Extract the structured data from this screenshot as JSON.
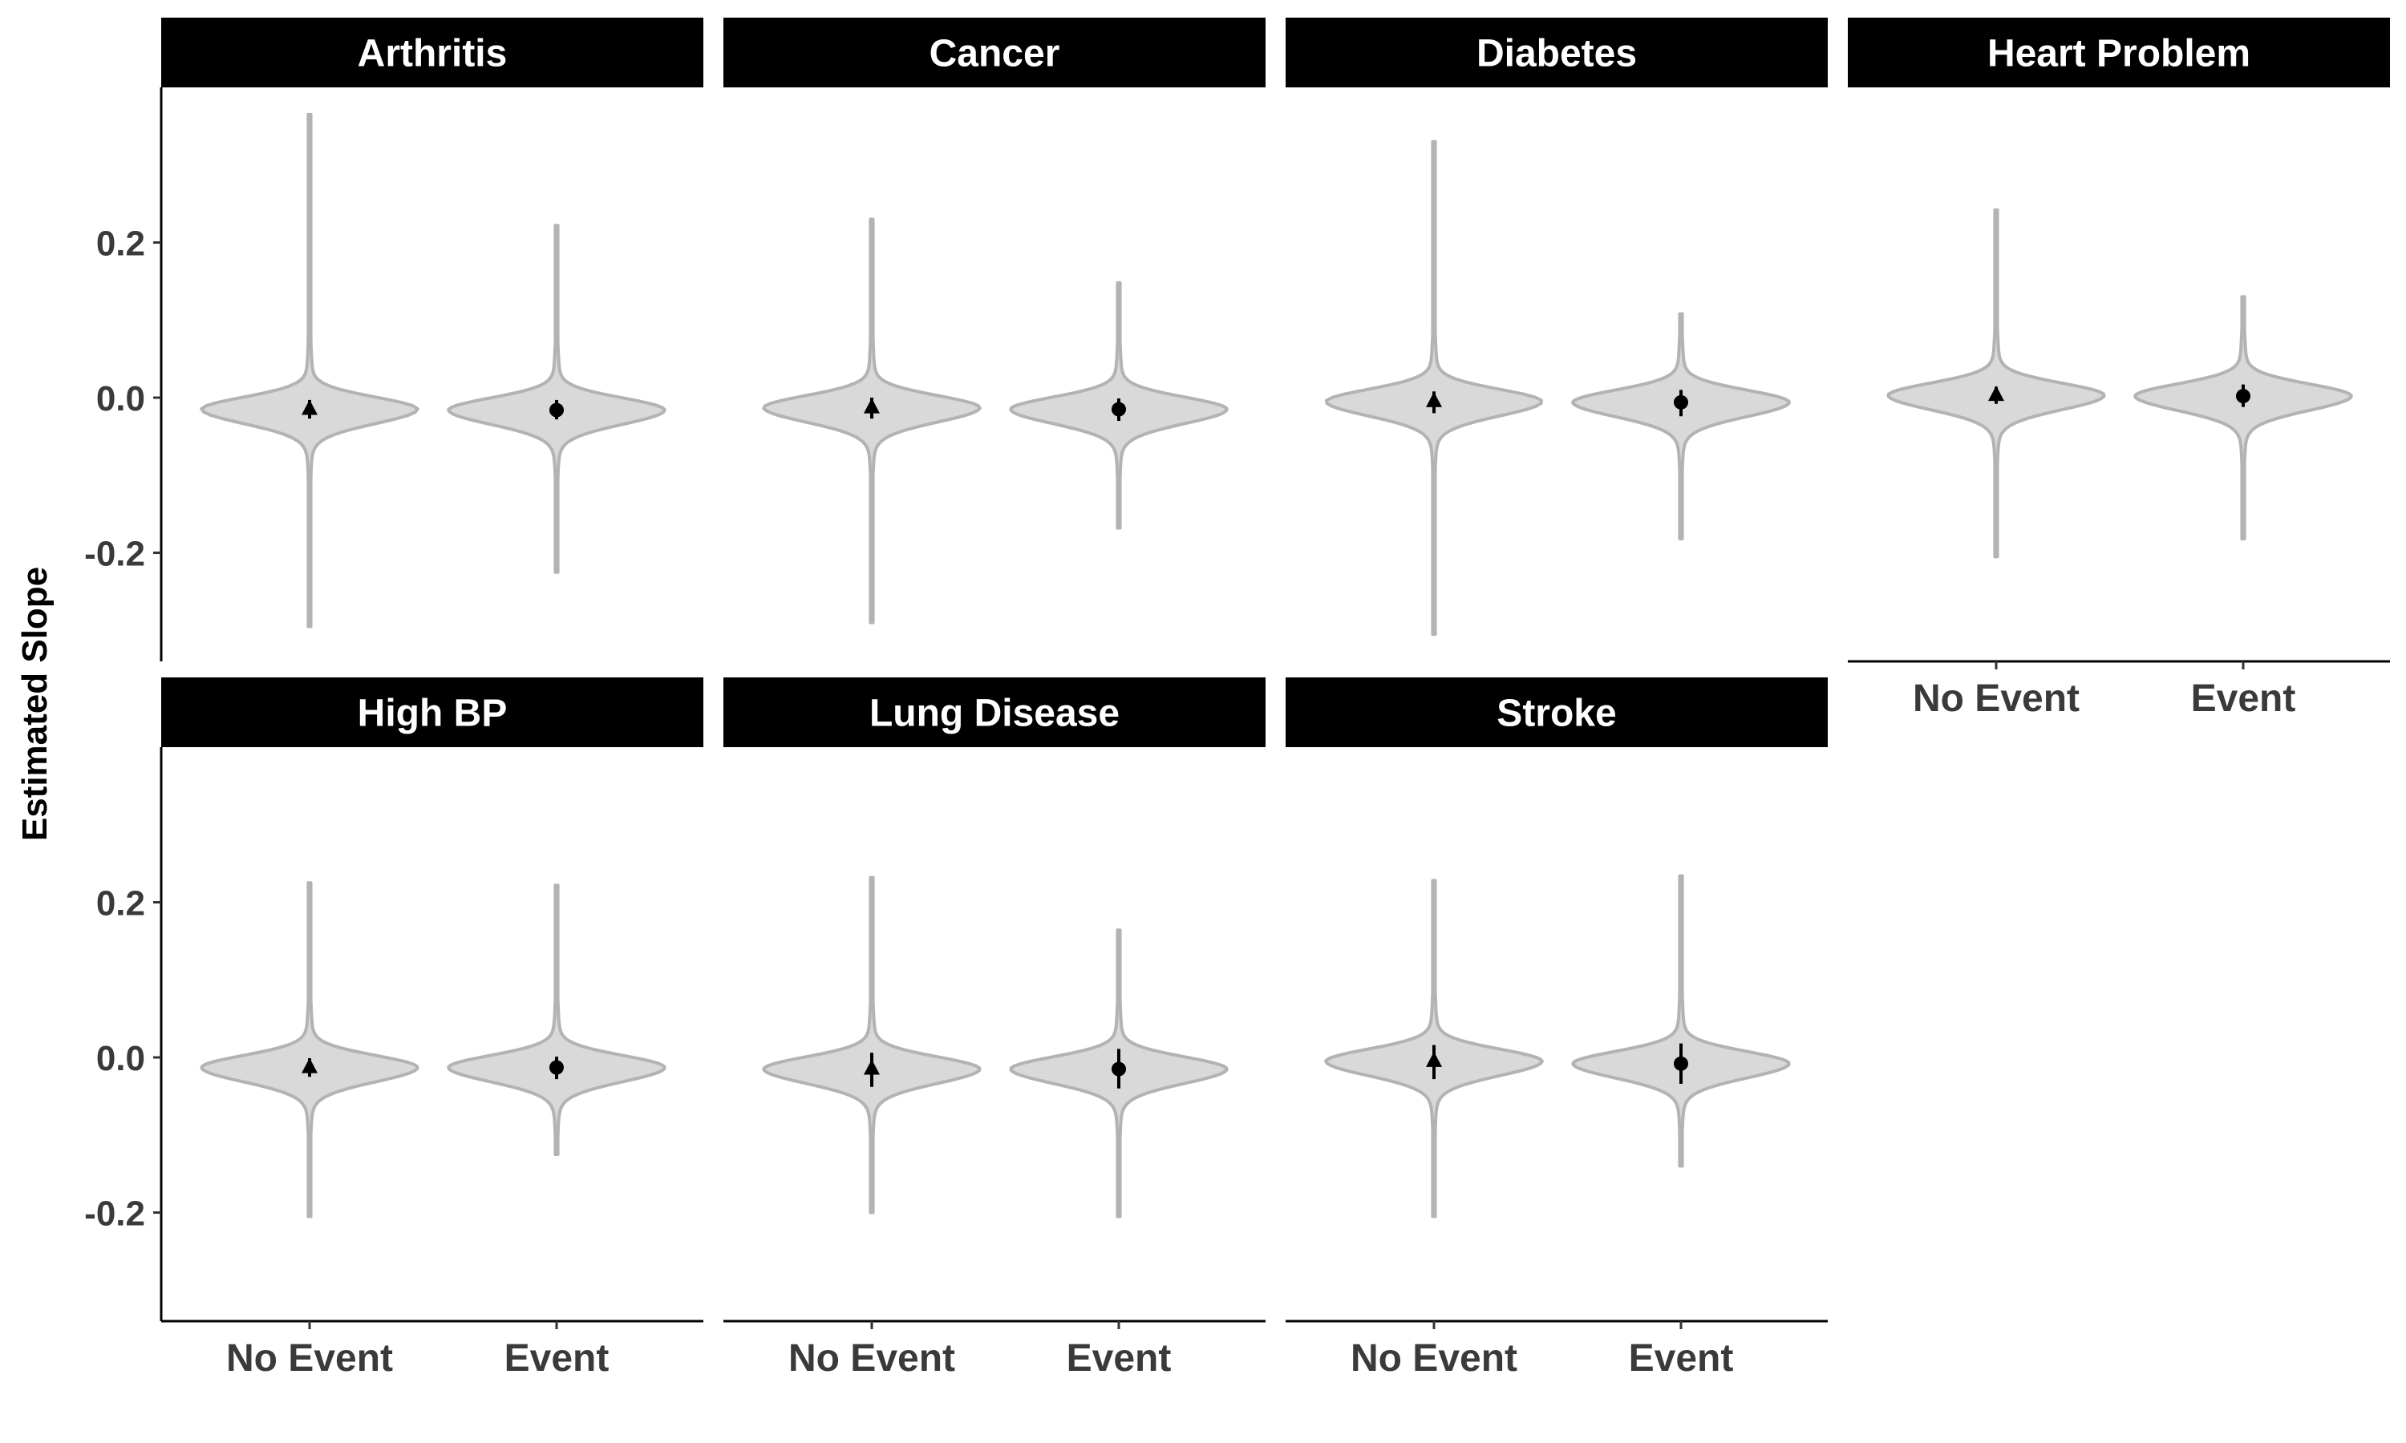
{
  "chart_data": {
    "type": "violin",
    "ylabel": "Estimated Slope",
    "xlabel": "",
    "categories": [
      "No Event",
      "Event"
    ],
    "yticks": [
      "0.2",
      "0.0",
      "-0.2"
    ],
    "ytick_values": [
      0.2,
      0.0,
      -0.2
    ],
    "ylim": [
      -0.34,
      0.4
    ],
    "grid": false,
    "colors": {
      "violin_fill": "#d9d9d9",
      "violin_line": "#b3b3b3",
      "strip_bg": "#000000",
      "strip_text": "#ffffff",
      "marker": "#000000"
    },
    "panels": [
      {
        "name": "Arthritis",
        "groups": [
          {
            "category": "No Event",
            "marker": "triangle",
            "mean": -0.015,
            "ci": [
              -0.027,
              -0.003
            ],
            "min": -0.295,
            "max": 0.365
          },
          {
            "category": "Event",
            "marker": "circle",
            "mean": -0.016,
            "ci": [
              -0.028,
              -0.003
            ],
            "min": -0.225,
            "max": 0.222
          }
        ]
      },
      {
        "name": "Cancer",
        "groups": [
          {
            "category": "No Event",
            "marker": "triangle",
            "mean": -0.013,
            "ci": [
              -0.027,
              0.0
            ],
            "min": -0.29,
            "max": 0.23
          },
          {
            "category": "Event",
            "marker": "circle",
            "mean": -0.015,
            "ci": [
              -0.03,
              -0.001
            ],
            "min": -0.168,
            "max": 0.148
          }
        ]
      },
      {
        "name": "Diabetes",
        "groups": [
          {
            "category": "No Event",
            "marker": "triangle",
            "mean": -0.005,
            "ci": [
              -0.02,
              0.008
            ],
            "min": -0.305,
            "max": 0.33
          },
          {
            "category": "Event",
            "marker": "circle",
            "mean": -0.006,
            "ci": [
              -0.024,
              0.01
            ],
            "min": -0.182,
            "max": 0.108
          }
        ]
      },
      {
        "name": "Heart Problem",
        "groups": [
          {
            "category": "No Event",
            "marker": "triangle",
            "mean": 0.003,
            "ci": [
              -0.008,
              0.014
            ],
            "min": -0.205,
            "max": 0.242
          },
          {
            "category": "Event",
            "marker": "circle",
            "mean": 0.002,
            "ci": [
              -0.012,
              0.017
            ],
            "min": -0.182,
            "max": 0.13
          }
        ]
      },
      {
        "name": "High BP",
        "groups": [
          {
            "category": "No Event",
            "marker": "triangle",
            "mean": -0.013,
            "ci": [
              -0.025,
              -0.001
            ],
            "min": -0.205,
            "max": 0.225
          },
          {
            "category": "Event",
            "marker": "circle",
            "mean": -0.013,
            "ci": [
              -0.028,
              0.001
            ],
            "min": -0.125,
            "max": 0.222
          }
        ]
      },
      {
        "name": "Lung Disease",
        "groups": [
          {
            "category": "No Event",
            "marker": "triangle",
            "mean": -0.015,
            "ci": [
              -0.038,
              0.006
            ],
            "min": -0.2,
            "max": 0.232
          },
          {
            "category": "Event",
            "marker": "circle",
            "mean": -0.015,
            "ci": [
              -0.04,
              0.011
            ],
            "min": -0.205,
            "max": 0.164
          }
        ]
      },
      {
        "name": "Stroke",
        "groups": [
          {
            "category": "No Event",
            "marker": "triangle",
            "mean": -0.005,
            "ci": [
              -0.028,
              0.016
            ],
            "min": -0.205,
            "max": 0.228
          },
          {
            "category": "Event",
            "marker": "circle",
            "mean": -0.008,
            "ci": [
              -0.034,
              0.018
            ],
            "min": -0.14,
            "max": 0.234
          }
        ]
      }
    ]
  }
}
